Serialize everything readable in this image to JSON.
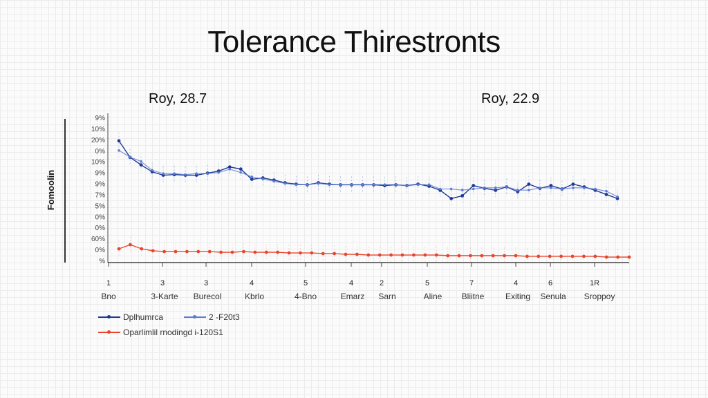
{
  "chart_data": {
    "type": "line",
    "title": "Tolerance Thirestronts",
    "subtitles": [
      "Roy, 28.7",
      "Roy, 22.9"
    ],
    "ylabel": "Fomoolin",
    "xlabel": "",
    "y_tick_labels": [
      "%",
      "0%",
      "60%",
      "0%",
      "0%",
      "5%",
      "7%",
      "9%",
      "9%",
      "10%",
      "0%",
      "20%",
      "10%",
      "9%"
    ],
    "ylim": [
      0,
      13
    ],
    "x_tick_numbers": [
      "1",
      "3",
      "3",
      "4",
      "5",
      "4",
      "2",
      "5",
      "7",
      "4",
      "6",
      "1R"
    ],
    "x_tick_names": [
      "Bno",
      "3-Karte",
      "Burecol",
      "Kbrlo",
      "4-Bno",
      "Emarz",
      "Sarn",
      "Aline",
      "Bliitne",
      "Exiting",
      "Senula",
      "Sroppoy"
    ],
    "grid": true,
    "legend_position": "bottom-left",
    "series": [
      {
        "name": "Dplhumrca",
        "color": "#1f3a93",
        "values": [
          10.88,
          9.38,
          8.69,
          8.06,
          7.75,
          7.81,
          7.75,
          7.75,
          7.94,
          8.13,
          8.5,
          8.31,
          7.38,
          7.5,
          7.31,
          7.06,
          6.94,
          6.88,
          7.06,
          6.94,
          6.88,
          6.88,
          6.88,
          6.88,
          6.81,
          6.88,
          6.81,
          6.94,
          6.75,
          6.38,
          5.63,
          5.88,
          6.81,
          6.56,
          6.38,
          6.69,
          6.25,
          6.94,
          6.56,
          6.81,
          6.5,
          6.94,
          6.69,
          6.38,
          6.0,
          5.63
        ]
      },
      {
        "name": "2 -F20t3",
        "color": "#5b7bd5",
        "values": [
          10.0,
          9.4,
          9.0,
          8.2,
          7.9,
          7.9,
          7.8,
          7.9,
          7.9,
          8.0,
          8.3,
          8.0,
          7.6,
          7.4,
          7.2,
          7.0,
          6.9,
          6.9,
          7.0,
          6.9,
          6.9,
          6.9,
          6.9,
          6.9,
          6.9,
          6.9,
          6.8,
          6.9,
          6.9,
          6.5,
          6.5,
          6.4,
          6.5,
          6.6,
          6.6,
          6.7,
          6.4,
          6.4,
          6.6,
          6.6,
          6.5,
          6.6,
          6.6,
          6.5,
          6.3,
          5.8
        ]
      },
      {
        "name": "Oparlimlil rnodingd i-120S1",
        "color": "#e8452c",
        "values": [
          1.06,
          1.44,
          1.06,
          0.88,
          0.81,
          0.81,
          0.81,
          0.81,
          0.81,
          0.75,
          0.75,
          0.81,
          0.75,
          0.75,
          0.75,
          0.69,
          0.69,
          0.69,
          0.63,
          0.63,
          0.56,
          0.56,
          0.5,
          0.5,
          0.5,
          0.5,
          0.5,
          0.5,
          0.5,
          0.44,
          0.44,
          0.44,
          0.44,
          0.44,
          0.44,
          0.44,
          0.38,
          0.38,
          0.38,
          0.38,
          0.38,
          0.38,
          0.38,
          0.31,
          0.31,
          0.31
        ]
      }
    ]
  }
}
